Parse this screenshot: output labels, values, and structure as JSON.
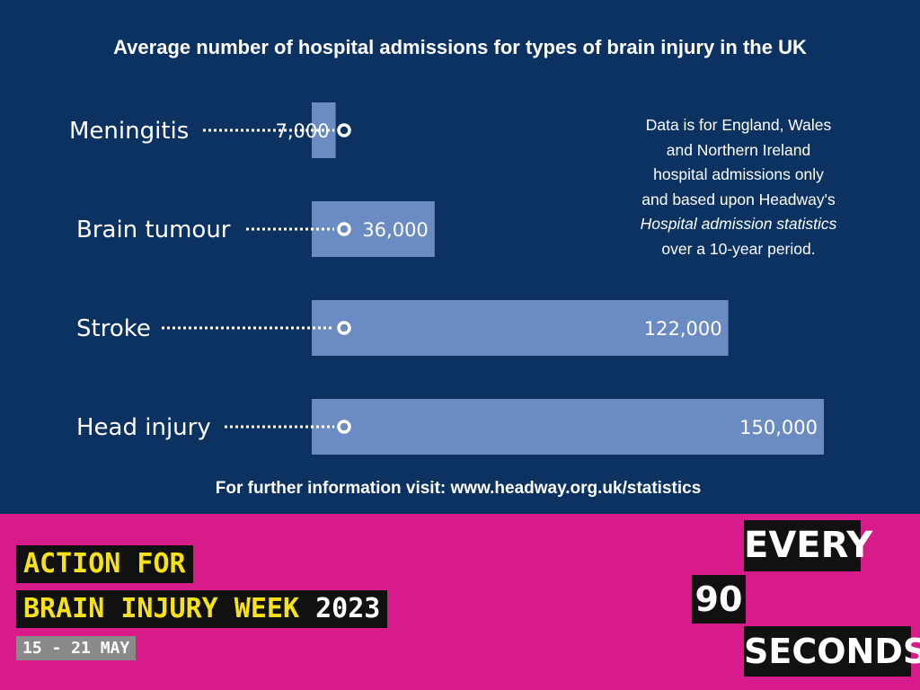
{
  "chart_data": {
    "type": "bar",
    "orientation": "horizontal",
    "title": "Average number of hospital admissions for types of brain injury in the UK",
    "categories": [
      "Meningitis",
      "Brain tumour",
      "Stroke",
      "Head injury"
    ],
    "values": [
      7000,
      36000,
      122000,
      150000
    ],
    "value_labels": [
      "7,000",
      "36,000",
      "122,000",
      "150,000"
    ],
    "xlabel": "",
    "ylabel": "",
    "xlim": [
      0,
      150000
    ],
    "grid": false,
    "legend": "none",
    "bar_color": "#6b8cc2"
  },
  "note": {
    "line1": "Data is for England, Wales",
    "line2": "and Northern Ireland",
    "line3": "hospital admissions only",
    "line4": "and based upon Headway's",
    "line5": "Hospital admission statistics",
    "line6": "over a 10-year period."
  },
  "footer": {
    "link_text": "For further information visit: www.headway.org.uk/statistics"
  },
  "campaign": {
    "line1": "ACTION FOR",
    "line2": "BRAIN INJURY WEEK",
    "year": "2023",
    "dates": "15 - 21 MAY"
  },
  "slogan": {
    "every": "EVERY",
    "number": "90",
    "seconds": "SECONDS"
  },
  "colors": {
    "background_top": "#0c3262",
    "background_bottom": "#d81b8b",
    "accent_yellow": "#f6e21a"
  }
}
